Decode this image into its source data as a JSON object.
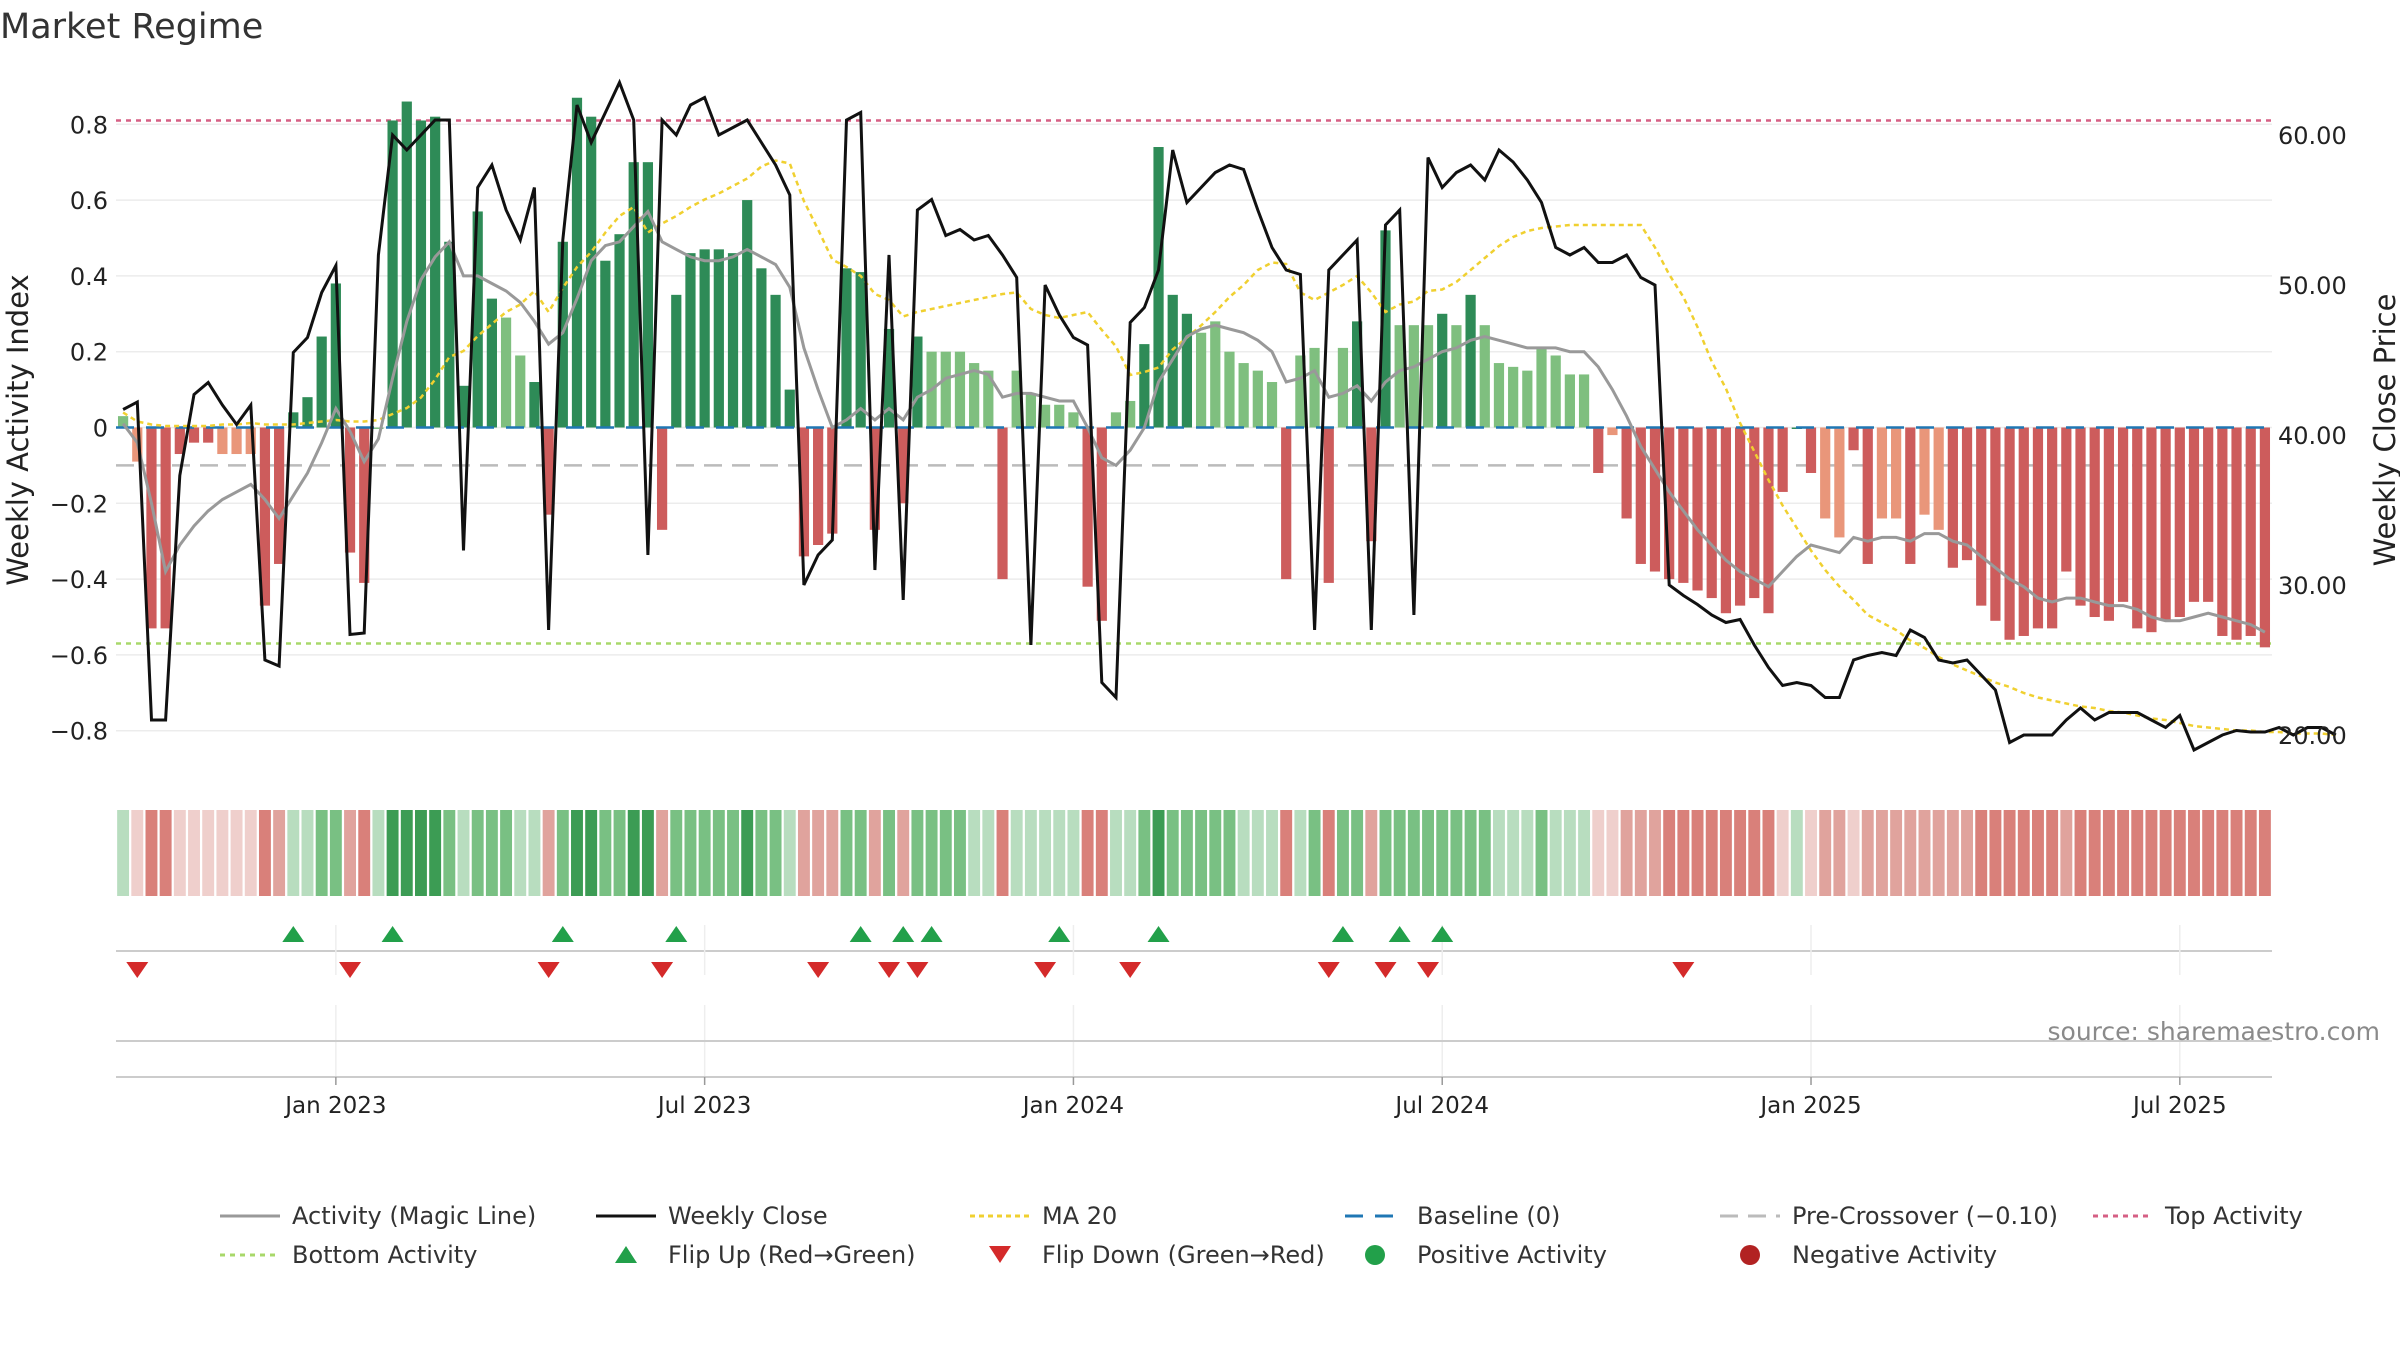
{
  "chart_data": {
    "type": "bar",
    "title": "Market Regime",
    "ylabel_left": "Weekly Activity Index",
    "ylabel_right": "Weekly Close Price",
    "source": "source: sharemaestro.com",
    "ylim_left": [
      -0.93,
      0.93
    ],
    "ylim_right": [
      17,
      64
    ],
    "yticks_left": [
      "0.8",
      "0.6",
      "0.4",
      "0.2",
      "0",
      "−0.2",
      "−0.4",
      "−0.6",
      "−0.8"
    ],
    "yticks_left_values": [
      0.8,
      0.6,
      0.4,
      0.2,
      0,
      -0.2,
      -0.4,
      -0.6,
      -0.8
    ],
    "yticks_right": [
      "60.00",
      "50.00",
      "40.00",
      "30.00",
      "20.00"
    ],
    "yticks_right_values": [
      60,
      50,
      40,
      30,
      20
    ],
    "xticks": [
      "Jan 2023",
      "Jul 2023",
      "Jan 2024",
      "Jul 2024",
      "Jan 2025",
      "Jul 2025"
    ],
    "xticks_week_index": [
      15,
      41,
      67,
      93,
      119,
      145
    ],
    "reference_lines": {
      "top_activity": 0.81,
      "bottom_activity": -0.57,
      "pre_crossover": -0.1,
      "baseline": 0
    },
    "activity": [
      0.03,
      -0.09,
      -0.53,
      -0.53,
      -0.07,
      -0.04,
      -0.04,
      -0.07,
      -0.07,
      -0.07,
      -0.47,
      -0.36,
      0.04,
      0.08,
      0.24,
      0.38,
      -0.33,
      -0.41,
      0.0,
      0.81,
      0.86,
      0.81,
      0.82,
      0.49,
      0.11,
      0.57,
      0.34,
      0.29,
      0.19,
      0.12,
      -0.23,
      0.49,
      0.87,
      0.82,
      0.44,
      0.51,
      0.7,
      0.7,
      -0.27,
      0.35,
      0.46,
      0.47,
      0.47,
      0.46,
      0.6,
      0.42,
      0.35,
      0.1,
      -0.34,
      -0.31,
      -0.28,
      0.42,
      0.41,
      -0.27,
      0.26,
      -0.2,
      0.24,
      0.2,
      0.2,
      0.2,
      0.17,
      0.15,
      -0.4,
      0.15,
      0.09,
      0.06,
      0.06,
      0.04,
      -0.42,
      -0.51,
      0.04,
      0.07,
      0.22,
      0.74,
      0.35,
      0.3,
      0.25,
      0.28,
      0.2,
      0.17,
      0.15,
      0.12,
      -0.4,
      0.19,
      0.21,
      -0.41,
      0.21,
      0.28,
      -0.3,
      0.52,
      0.27,
      0.27,
      0.27,
      0.3,
      0.27,
      0.35,
      0.27,
      0.17,
      0.16,
      0.15,
      0.21,
      0.19,
      0.14,
      0.14,
      -0.12,
      -0.02,
      -0.24,
      -0.36,
      -0.38,
      -0.4,
      -0.41,
      -0.43,
      -0.45,
      -0.49,
      -0.47,
      -0.45,
      -0.49,
      -0.17,
      0.0,
      -0.12,
      -0.24,
      -0.29,
      -0.06,
      -0.36,
      -0.24,
      -0.24,
      -0.36,
      -0.23,
      -0.27,
      -0.37,
      -0.35,
      -0.47,
      -0.51,
      -0.56,
      -0.55,
      -0.53,
      -0.53,
      -0.38,
      -0.47,
      -0.5,
      -0.51,
      -0.46,
      -0.53,
      -0.54,
      -0.51,
      -0.5,
      -0.46,
      -0.46,
      -0.55,
      -0.56,
      -0.55,
      -0.58
    ],
    "activity_line": [
      0.01,
      -0.04,
      -0.2,
      -0.38,
      -0.31,
      -0.26,
      -0.22,
      -0.19,
      -0.17,
      -0.15,
      -0.19,
      -0.24,
      -0.18,
      -0.12,
      -0.04,
      0.05,
      -0.01,
      -0.09,
      -0.03,
      0.13,
      0.28,
      0.39,
      0.45,
      0.49,
      0.4,
      0.4,
      0.38,
      0.36,
      0.33,
      0.28,
      0.22,
      0.25,
      0.34,
      0.44,
      0.48,
      0.49,
      0.53,
      0.57,
      0.49,
      0.47,
      0.45,
      0.44,
      0.44,
      0.45,
      0.47,
      0.45,
      0.43,
      0.37,
      0.21,
      0.1,
      0.0,
      0.02,
      0.05,
      0.02,
      0.05,
      0.02,
      0.08,
      0.1,
      0.13,
      0.14,
      0.15,
      0.14,
      0.08,
      0.09,
      0.09,
      0.08,
      0.07,
      0.07,
      0.0,
      -0.08,
      -0.1,
      -0.06,
      0.0,
      0.12,
      0.18,
      0.24,
      0.26,
      0.27,
      0.26,
      0.25,
      0.23,
      0.2,
      0.12,
      0.13,
      0.15,
      0.08,
      0.09,
      0.11,
      0.07,
      0.12,
      0.15,
      0.16,
      0.18,
      0.2,
      0.21,
      0.23,
      0.24,
      0.23,
      0.22,
      0.21,
      0.21,
      0.21,
      0.2,
      0.2,
      0.16,
      0.1,
      0.03,
      -0.05,
      -0.11,
      -0.17,
      -0.22,
      -0.27,
      -0.31,
      -0.35,
      -0.38,
      -0.4,
      -0.42,
      -0.38,
      -0.34,
      -0.31,
      -0.32,
      -0.33,
      -0.29,
      -0.3,
      -0.29,
      -0.29,
      -0.3,
      -0.28,
      -0.28,
      -0.3,
      -0.31,
      -0.34,
      -0.37,
      -0.4,
      -0.42,
      -0.45,
      -0.46,
      -0.45,
      -0.45,
      -0.46,
      -0.47,
      -0.47,
      -0.48,
      -0.5,
      -0.51,
      -0.51,
      -0.5,
      -0.49,
      -0.5,
      -0.51,
      -0.52,
      -0.54
    ],
    "weekly_close": [
      41.7,
      42.2,
      21.0,
      21.0,
      37.3,
      42.7,
      43.5,
      42.0,
      40.7,
      42.0,
      25.0,
      24.6,
      45.5,
      46.5,
      49.5,
      51.3,
      26.7,
      26.8,
      52.0,
      60.0,
      59.0,
      60.0,
      61.0,
      61.0,
      32.3,
      56.5,
      58.0,
      55.0,
      53.0,
      56.5,
      27.0,
      53.0,
      62.0,
      59.5,
      61.5,
      63.5,
      61.0,
      32.0,
      61.0,
      60.0,
      62.0,
      62.5,
      60.0,
      60.5,
      61.0,
      59.5,
      58.0,
      56.0,
      30.0,
      32.0,
      33.0,
      61.0,
      61.5,
      31.0,
      52.0,
      29.0,
      55.0,
      55.7,
      53.3,
      53.7,
      53.0,
      53.3,
      52.0,
      50.5,
      26.0,
      50.0,
      48.0,
      46.5,
      46.0,
      23.5,
      22.5,
      47.5,
      48.5,
      51.0,
      59.0,
      55.5,
      56.5,
      57.5,
      58.0,
      57.7,
      55.0,
      52.5,
      51.0,
      50.7,
      27.0,
      51.0,
      52.0,
      53.0,
      27.0,
      54.0,
      55.0,
      28.0,
      58.5,
      56.5,
      57.5,
      58.0,
      57.0,
      59.0,
      58.2,
      57.0,
      55.5,
      52.5,
      52.0,
      52.5,
      51.5,
      51.5,
      52.0,
      50.5,
      50.0,
      30.0,
      29.3,
      28.7,
      28.0,
      27.5,
      27.7,
      26.0,
      24.5,
      23.3,
      23.5,
      23.3,
      22.5,
      22.5,
      25.0,
      25.3,
      25.5,
      25.3,
      27.0,
      26.5,
      25.0,
      24.8,
      25.0,
      24.0,
      23.0,
      19.5,
      20.0,
      20.0,
      20.0,
      21.0,
      21.8,
      21.0,
      21.5,
      21.5,
      21.5,
      21.0,
      20.5,
      21.3,
      19.0,
      19.5,
      20.0,
      20.3,
      20.2,
      20.2,
      20.5,
      20.0,
      20.5,
      20.5,
      20.0
    ],
    "ma20": [
      41.5,
      40.9,
      40.7,
      40.6,
      40.6,
      40.6,
      40.6,
      40.7,
      40.7,
      40.8,
      40.7,
      40.7,
      40.7,
      40.8,
      40.9,
      41.0,
      40.9,
      40.9,
      41.0,
      41.4,
      41.8,
      42.5,
      43.7,
      45.2,
      45.6,
      46.6,
      47.4,
      48.2,
      48.7,
      49.6,
      48.2,
      49.8,
      51.2,
      52.2,
      53.5,
      54.6,
      55.2,
      53.5,
      54.1,
      54.6,
      55.2,
      55.7,
      56.1,
      56.6,
      57.1,
      57.9,
      58.3,
      58.1,
      55.6,
      53.7,
      51.7,
      51.2,
      50.6,
      49.4,
      49.0,
      47.9,
      48.2,
      48.4,
      48.6,
      48.8,
      49.0,
      49.2,
      49.4,
      49.5,
      48.4,
      48.0,
      47.8,
      48.0,
      48.2,
      47.0,
      45.9,
      44.0,
      44.2,
      44.5,
      45.7,
      46.5,
      47.3,
      48.2,
      49.2,
      50.0,
      51.0,
      51.5,
      51.4,
      49.5,
      49.0,
      49.5,
      50.0,
      50.6,
      49.5,
      48.2,
      48.7,
      48.9,
      49.6,
      49.7,
      50.2,
      51.0,
      51.8,
      52.6,
      53.2,
      53.6,
      53.8,
      53.9,
      54.0,
      54.0,
      54.0,
      54.0,
      54.0,
      54.0,
      52.5,
      50.7,
      49.2,
      47.2,
      44.9,
      43.1,
      40.8,
      38.9,
      37.0,
      35.3,
      33.8,
      32.3,
      31.0,
      29.9,
      29.0,
      28.0,
      27.5,
      27.0,
      26.3,
      25.8,
      25.2,
      24.7,
      24.3,
      23.9,
      23.5,
      23.2,
      22.8,
      22.5,
      22.3,
      22.1,
      21.9,
      21.8,
      21.6,
      21.5,
      21.3,
      21.1,
      21.0,
      20.8,
      20.6,
      20.5,
      20.4,
      20.3,
      20.3,
      20.2,
      20.2,
      20.1,
      20.1,
      20.1,
      20.0
    ],
    "flip_up_weeks": [
      12,
      19,
      31,
      39,
      52,
      55,
      57,
      66,
      73,
      86,
      90,
      93
    ],
    "flip_down_weeks": [
      1,
      16,
      30,
      38,
      49,
      54,
      56,
      65,
      71,
      85,
      89,
      92,
      110
    ],
    "legend": [
      {
        "label": "Activity (Magic Line)"
      },
      {
        "label": "Weekly Close"
      },
      {
        "label": "MA 20"
      },
      {
        "label": "Baseline (0)"
      },
      {
        "label": "Pre-Crossover (−0.10)"
      },
      {
        "label": "Top Activity"
      },
      {
        "label": "Bottom Activity"
      },
      {
        "label": "Flip Up (Red→Green)"
      },
      {
        "label": "Flip Down (Green→Red)"
      },
      {
        "label": "Positive Activity"
      },
      {
        "label": "Negative Activity"
      }
    ],
    "colors": {
      "pos_strong": "#2e8b57",
      "pos_light": "#7fbf7f",
      "neg_strong": "#cd5c5c",
      "neg_light": "#e9967a",
      "activity_line": "#999999",
      "close_line": "#111111",
      "ma20_line": "#f0d030",
      "baseline": "#1f77b4",
      "pre_crossover": "#bbbbbb",
      "top_activity": "#d65f84",
      "bottom_activity": "#a8d86a",
      "flip_up": "#22a04a",
      "flip_down": "#d42a2a",
      "positive_dot": "#22a04a",
      "negative_dot": "#b22222"
    }
  }
}
